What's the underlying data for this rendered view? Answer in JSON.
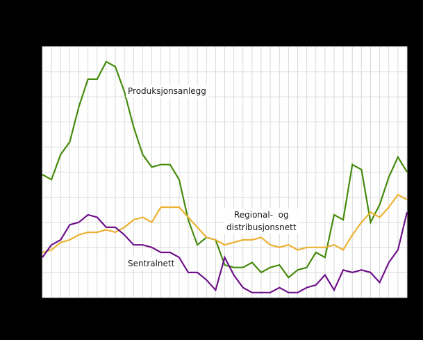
{
  "chart_data": {
    "type": "line",
    "title": "",
    "xlabel": "",
    "ylabel": "",
    "ylim": [
      0,
      10
    ],
    "grid": true,
    "legend_position": "inline annotations",
    "x": [
      0,
      1,
      2,
      3,
      4,
      5,
      6,
      7,
      8,
      9,
      10,
      11,
      12,
      13,
      14,
      15,
      16,
      17,
      18,
      19,
      20,
      21,
      22,
      23,
      24,
      25,
      26,
      27,
      28,
      29,
      30,
      31,
      32,
      33,
      34,
      35,
      36,
      37,
      38,
      39,
      40
    ],
    "series": [
      {
        "name": "Produksjonsanlegg",
        "color": "#448a0b",
        "values": [
          4.9,
          4.7,
          5.7,
          6.2,
          7.6,
          8.7,
          8.7,
          9.4,
          9.2,
          8.2,
          6.8,
          5.7,
          5.2,
          5.3,
          5.3,
          4.7,
          3.1,
          2.1,
          2.4,
          2.3,
          1.3,
          1.2,
          1.2,
          1.4,
          1.0,
          1.2,
          1.3,
          0.8,
          1.1,
          1.2,
          1.8,
          1.6,
          3.3,
          3.1,
          5.3,
          5.1,
          3.0,
          3.7,
          4.8,
          5.6,
          5.0
        ]
      },
      {
        "name": "Regional- og distribusjonsnett",
        "color": "#ebb130",
        "values": [
          1.8,
          1.9,
          2.2,
          2.3,
          2.5,
          2.6,
          2.6,
          2.7,
          2.6,
          2.8,
          3.1,
          3.2,
          3.0,
          3.6,
          3.6,
          3.6,
          3.2,
          2.8,
          2.4,
          2.3,
          2.1,
          2.2,
          2.3,
          2.3,
          2.4,
          2.1,
          2.0,
          2.1,
          1.9,
          2.0,
          2.0,
          2.0,
          2.1,
          1.9,
          2.5,
          3.0,
          3.4,
          3.2,
          3.6,
          4.1,
          3.9
        ]
      },
      {
        "name": "Sentralnett",
        "color": "#6e118a",
        "values": [
          1.6,
          2.1,
          2.3,
          2.9,
          3.0,
          3.3,
          3.2,
          2.8,
          2.8,
          2.5,
          2.1,
          2.1,
          2.0,
          1.8,
          1.8,
          1.6,
          1.0,
          1.0,
          0.7,
          0.3,
          1.6,
          0.9,
          0.4,
          0.2,
          0.2,
          0.2,
          0.4,
          0.2,
          0.2,
          0.4,
          0.5,
          0.9,
          0.3,
          1.1,
          1.0,
          1.1,
          1.0,
          0.6,
          1.4,
          1.9,
          3.4
        ]
      }
    ],
    "annotations": [
      {
        "text": "Produksjonsanlegg",
        "series": "Produksjonsanlegg"
      },
      {
        "text": "Regional-  og distribusjonsnett",
        "series": "Regional- og distribusjonsnett"
      },
      {
        "text": "Sentralnett",
        "series": "Sentralnett"
      }
    ]
  },
  "labels": {
    "production": "Produksjonsanlegg",
    "regional_line1": "Regional-  og",
    "regional_line2": "distribusjonsnett",
    "central": "Sentralnett"
  },
  "colors": {
    "background": "#000000",
    "plot_background": "#ffffff",
    "grid": "#d9d9d9"
  }
}
